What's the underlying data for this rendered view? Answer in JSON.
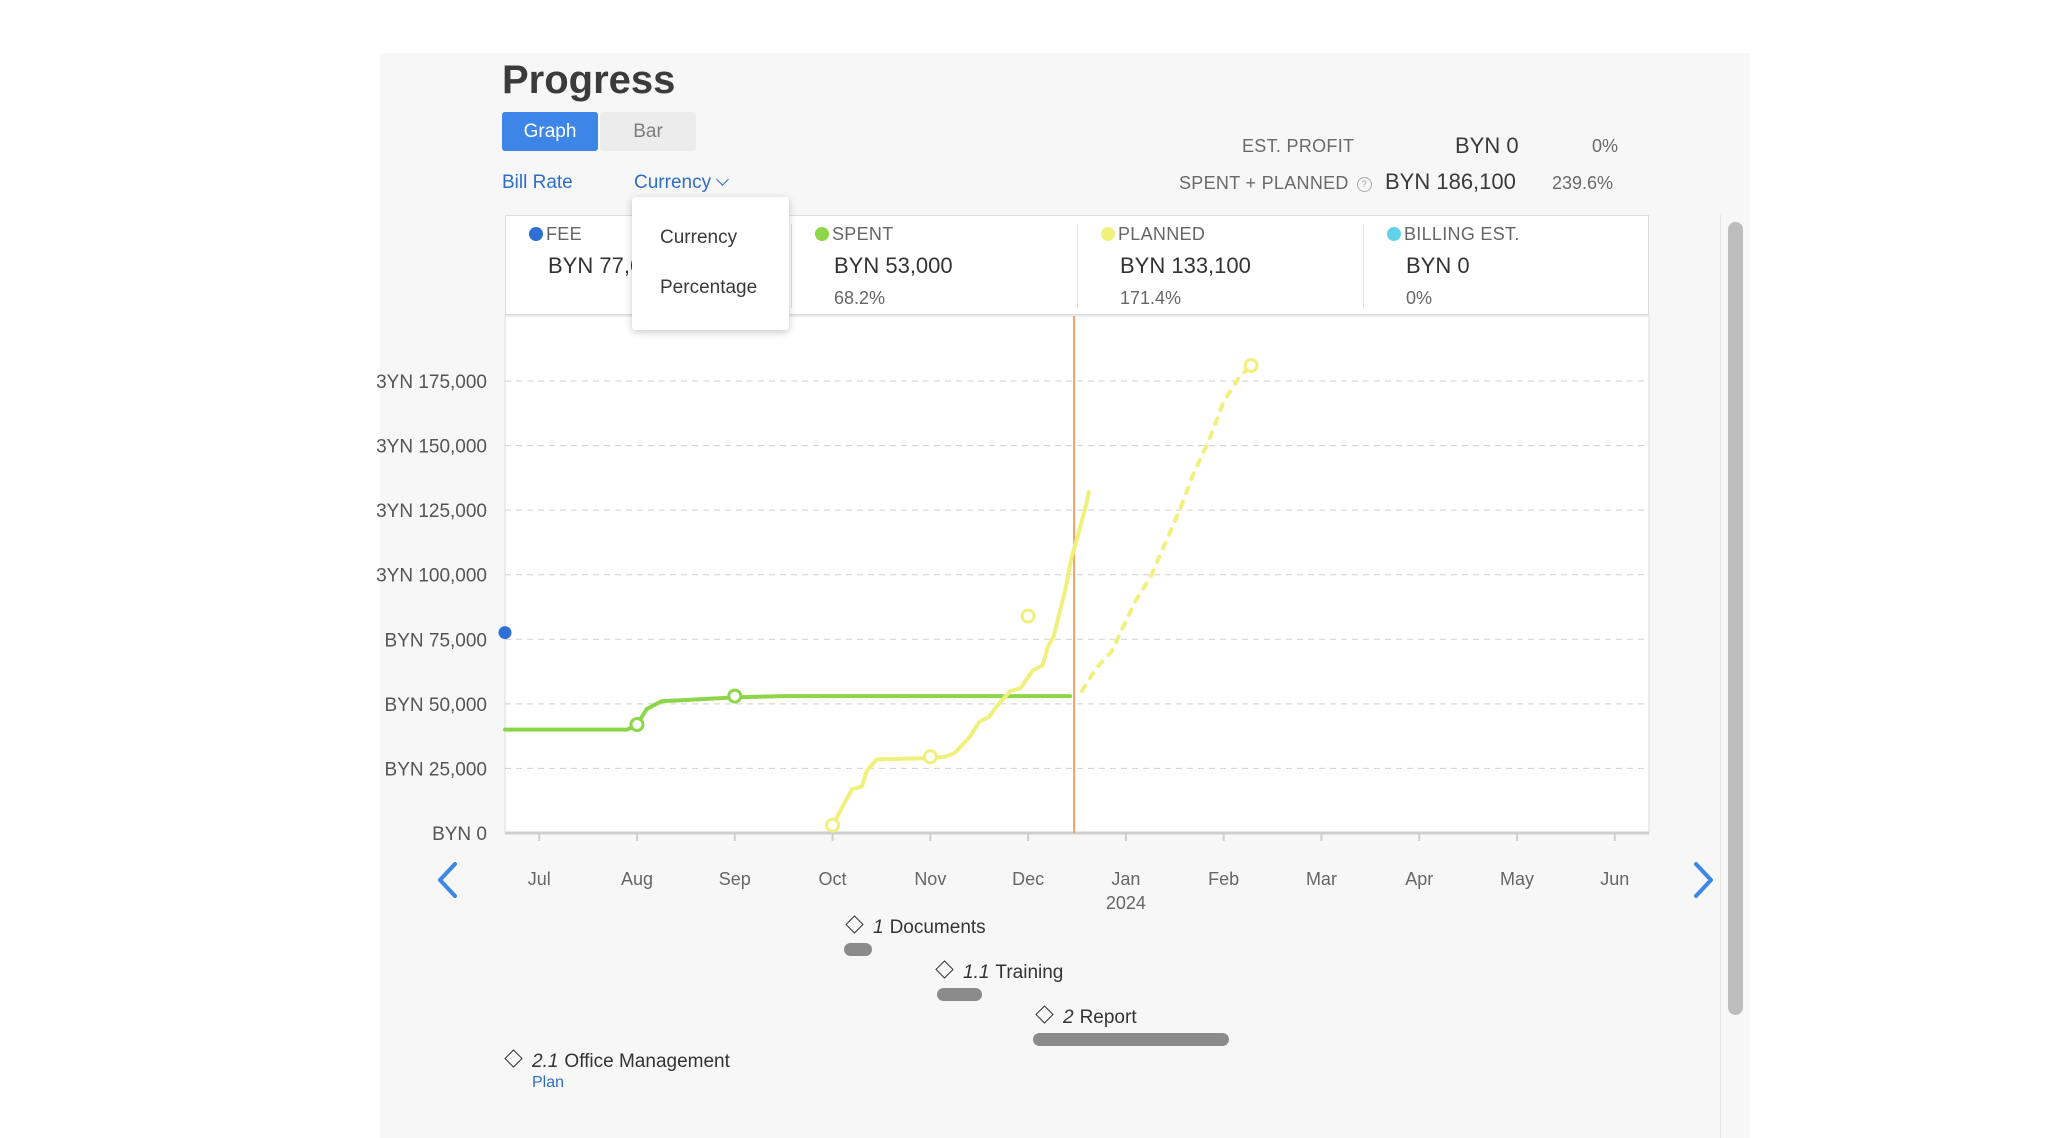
{
  "header": {
    "title": "Progress"
  },
  "view_toggle": {
    "graph_label": "Graph",
    "bar_label": "Bar",
    "selected": "Graph"
  },
  "options": {
    "rate_label": "Bill Rate",
    "display_label": "Currency"
  },
  "dropdown": {
    "options": [
      "Currency",
      "Percentage"
    ]
  },
  "summary": {
    "est_profit": {
      "label": "EST. PROFIT",
      "value": "BYN 0",
      "pct": "0%"
    },
    "spent_planned": {
      "label": "SPENT + PLANNED",
      "value": "BYN 186,100",
      "pct": "239.6%"
    }
  },
  "metrics": [
    {
      "label": "FEE",
      "value": "BYN 77,6",
      "pct": "",
      "color": "#2f6fd6"
    },
    {
      "label": "SPENT",
      "value": "BYN 53,000",
      "pct": "68.2%",
      "color": "#8cd648"
    },
    {
      "label": "PLANNED",
      "value": "BYN 133,100",
      "pct": "171.4%",
      "color": "#f2f07c"
    },
    {
      "label": "BILLING EST.",
      "value": "BYN 0",
      "pct": "0%",
      "color": "#62d2ea"
    }
  ],
  "chart_data": {
    "type": "line",
    "y_ticks": [
      "BYN 0",
      "BYN 25,000",
      "BYN 50,000",
      "BYN 75,000",
      "BYN 100,000",
      "BYN 125,000",
      "BYN 150,000",
      "BYN 175,000"
    ],
    "y_tick_text": [
      "BYN 0",
      "BYN 25,000",
      "BYN 50,000",
      "BYN 75,000",
      "3YN 100,000",
      "3YN 125,000",
      "3YN 150,000",
      "3YN 175,000"
    ],
    "ylim": [
      0,
      200000
    ],
    "x_months": [
      "Jul",
      "Aug",
      "Sep",
      "Oct",
      "Nov",
      "Dec",
      "Jan",
      "Feb",
      "Mar",
      "Apr",
      "May",
      "Jun"
    ],
    "x_year_label": "2024",
    "x_range": [
      -0.35,
      11.35
    ],
    "today": 5.47,
    "grid": true,
    "fee": {
      "x": -0.35,
      "y": 77600,
      "color": "#2f6fd6"
    },
    "series": [
      {
        "name": "SPENT",
        "color": "#8cd648",
        "style": "solid",
        "points": [
          [
            -0.35,
            40000
          ],
          [
            0.3,
            40000
          ],
          [
            0.9,
            40000
          ],
          [
            1.0,
            42000
          ],
          [
            1.1,
            48000
          ],
          [
            1.25,
            51000
          ],
          [
            1.5,
            51500
          ],
          [
            2.0,
            52500
          ],
          [
            2.5,
            53000
          ],
          [
            3.5,
            53000
          ],
          [
            4.5,
            53000
          ],
          [
            5.43,
            53000
          ]
        ],
        "markers": [
          [
            1.0,
            42000
          ],
          [
            2.0,
            53000
          ]
        ]
      },
      {
        "name": "PLANNED",
        "color": "#f2f07c",
        "style": "solid",
        "points": [
          [
            3.0,
            3000
          ],
          [
            3.1,
            10000
          ],
          [
            3.2,
            17000
          ],
          [
            3.3,
            18000
          ],
          [
            3.35,
            24000
          ],
          [
            3.45,
            28500
          ],
          [
            4.0,
            29000
          ],
          [
            4.15,
            29500
          ],
          [
            4.25,
            31000
          ],
          [
            4.4,
            37000
          ],
          [
            4.5,
            43000
          ],
          [
            4.6,
            45000
          ],
          [
            4.7,
            50000
          ],
          [
            4.82,
            55000
          ],
          [
            4.92,
            56000
          ],
          [
            5.05,
            63000
          ],
          [
            5.15,
            65000
          ],
          [
            5.2,
            72000
          ],
          [
            5.26,
            76000
          ],
          [
            5.32,
            85000
          ],
          [
            5.38,
            94000
          ],
          [
            5.44,
            106000
          ],
          [
            5.5,
            114000
          ],
          [
            5.55,
            121000
          ],
          [
            5.6,
            128000
          ],
          [
            5.62,
            132000
          ]
        ],
        "markers": [
          [
            3.0,
            3000
          ],
          [
            4.0,
            29500
          ],
          [
            5.0,
            84000
          ]
        ]
      },
      {
        "name": "PLANNED",
        "color": "#f2f07c",
        "style": "dotted",
        "points": [
          [
            5.55,
            55000
          ],
          [
            5.7,
            64000
          ],
          [
            5.85,
            70000
          ],
          [
            5.95,
            78000
          ],
          [
            6.1,
            90000
          ],
          [
            6.25,
            99000
          ],
          [
            6.4,
            112000
          ],
          [
            6.55,
            125000
          ],
          [
            6.7,
            140000
          ],
          [
            6.85,
            152000
          ],
          [
            7.0,
            167000
          ],
          [
            7.15,
            176000
          ],
          [
            7.28,
            181000
          ]
        ],
        "markers": [
          [
            7.28,
            181000
          ]
        ]
      }
    ]
  },
  "milestones": [
    {
      "number": "1",
      "name": "Documents"
    },
    {
      "number": "1.1",
      "name": "Training"
    },
    {
      "number": "2",
      "name": "Report"
    },
    {
      "number": "2.1",
      "name": "Office Management"
    }
  ],
  "milestone_link": "Plan"
}
